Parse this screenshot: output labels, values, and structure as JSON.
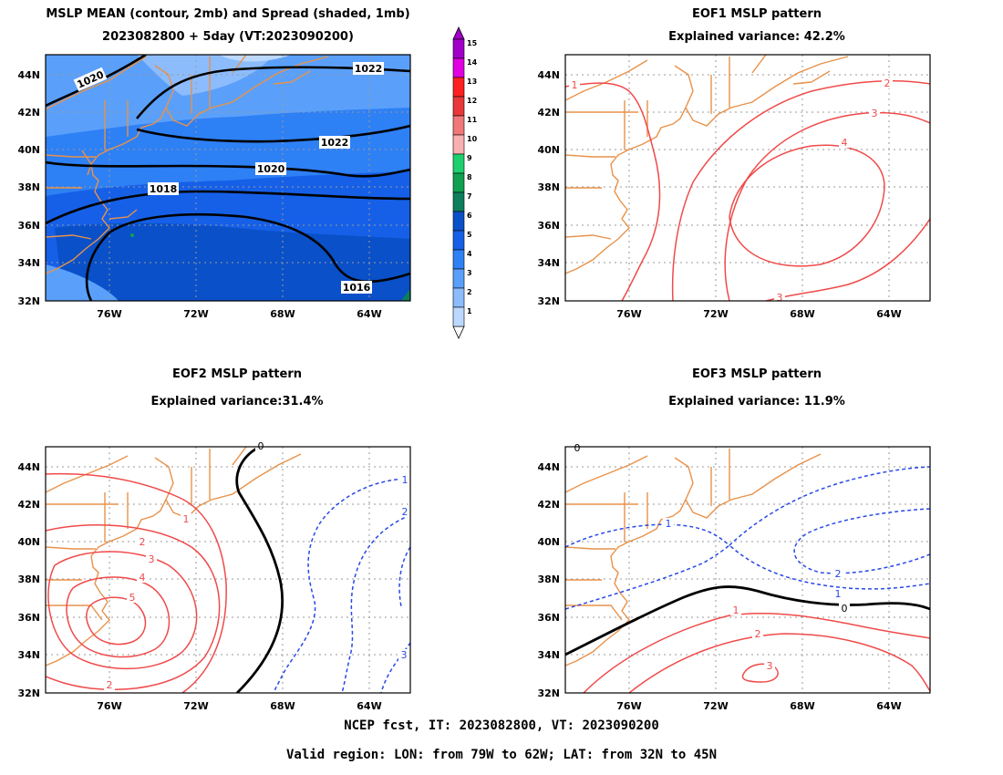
{
  "panels": {
    "mean": {
      "title_line1": "MSLP MEAN (contour, 2mb) and Spread (shaded, 1mb)",
      "title_line2": "2023082800 + 5day (VT:2023090200)",
      "contour_labels": [
        "1020",
        "1022",
        "1022",
        "1020",
        "1018",
        "1016"
      ]
    },
    "eof1": {
      "title_line1": "EOF1 MSLP pattern",
      "title_line2": "Explained variance: 42.2%",
      "contour_labels": [
        "1",
        "2",
        "3",
        "4",
        "3"
      ]
    },
    "eof2": {
      "title_line1": "EOF2 MSLP pattern",
      "title_line2": "Explained variance:31.4%",
      "contour_labels": [
        "0",
        "1",
        "2",
        "3",
        "4",
        "5",
        "2",
        "1",
        "2",
        "3"
      ]
    },
    "eof3": {
      "title_line1": "EOF3 MSLP pattern",
      "title_line2": "Explained variance: 11.9%",
      "contour_labels": [
        "0",
        "1",
        "2",
        "1",
        "0",
        "1",
        "2",
        "3"
      ]
    }
  },
  "axes": {
    "lat_ticks": [
      "44N",
      "42N",
      "40N",
      "38N",
      "36N",
      "34N",
      "32N"
    ],
    "lon_ticks": [
      "76W",
      "72W",
      "68W",
      "64W"
    ]
  },
  "colorbar": {
    "levels": [
      "15",
      "14",
      "13",
      "12",
      "11",
      "10",
      "9",
      "8",
      "7",
      "6",
      "5",
      "4",
      "3",
      "2",
      "1"
    ],
    "colors": [
      "#a000c8",
      "#e000e0",
      "#ff2020",
      "#e83838",
      "#f07878",
      "#f8b0b0",
      "#1ecf6e",
      "#10a050",
      "#0e7e5c",
      "#0a50c8",
      "#1660e8",
      "#2e80f5",
      "#5aa0fa",
      "#8cbcfc",
      "#bcd8fe"
    ]
  },
  "footer": {
    "line1": "NCEP fcst, IT: 2023082800, VT: 2023090200",
    "line2": "Valid region: LON: from 79W to 62W; LAT: from 32N to 45N"
  },
  "colors": {
    "coast": "#e8924a",
    "positive": "#f04a4a",
    "negative": "#2848e8",
    "zero": "#000000",
    "grid": "#9a9a9a"
  }
}
